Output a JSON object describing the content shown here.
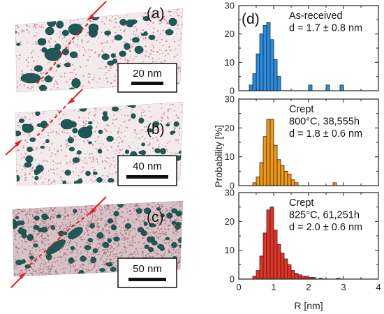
{
  "figure": {
    "panel_labels": [
      "(a)",
      "(b)",
      "(c)",
      "(d)"
    ],
    "scale_bars": [
      "20 nm",
      "40 nm",
      "50 nm"
    ],
    "ylabel": "Probability [%]",
    "xlabel": "R [nm]",
    "colors": {
      "precipitate": "#1d5a55",
      "matrix_dots": "#c0607a",
      "arrow": "#e02020",
      "border": "#222222"
    }
  },
  "chart_data": [
    {
      "type": "bar",
      "panel": "top",
      "title": "As-received",
      "annotation": "d = 1.7 ± 0.8 nm",
      "color": "#2a8ee6",
      "bin_width": 0.1,
      "x": [
        0.35,
        0.45,
        0.55,
        0.65,
        0.75,
        0.85,
        0.95,
        1.05,
        1.15,
        2.05,
        2.55,
        2.95
      ],
      "values": [
        2,
        6,
        13,
        20,
        23,
        24,
        18,
        11,
        5,
        2,
        2,
        2
      ],
      "xlim": [
        0,
        4
      ],
      "ylim": [
        0,
        30
      ],
      "xticks": [
        "0",
        "1",
        "2",
        "3",
        "4"
      ],
      "yticks": [
        "0",
        "10",
        "20",
        "30"
      ]
    },
    {
      "type": "bar",
      "panel": "middle",
      "title": "Crept",
      "subtitle": "800°C, 38,555h",
      "annotation": "d = 1.8 ± 0.6 nm",
      "color": "#f59b12",
      "bin_width": 0.1,
      "x": [
        0.45,
        0.55,
        0.65,
        0.75,
        0.85,
        0.95,
        1.05,
        1.15,
        1.25,
        1.35,
        1.45,
        1.55,
        1.65,
        2.75
      ],
      "values": [
        1,
        3,
        8,
        17,
        23,
        23,
        14,
        9,
        7,
        5,
        4,
        2,
        1,
        1
      ],
      "xlim": [
        0,
        4
      ],
      "ylim": [
        0,
        30
      ],
      "xticks": [
        "0",
        "1",
        "2",
        "3",
        "4"
      ],
      "yticks": [
        "0",
        "10",
        "20",
        "30"
      ]
    },
    {
      "type": "bar",
      "panel": "bottom",
      "title": "Crept",
      "subtitle": "825°C, 61,251h",
      "annotation": "d = 2.0 ± 0.6 nm",
      "color": "#e83224",
      "bin_width": 0.1,
      "x": [
        0.45,
        0.55,
        0.65,
        0.75,
        0.85,
        0.95,
        1.05,
        1.15,
        1.25,
        1.35,
        1.45,
        1.55,
        1.65,
        1.75,
        1.85,
        1.95,
        2.05,
        2.15,
        2.35,
        2.85
      ],
      "values": [
        1,
        3,
        8,
        16,
        24,
        25,
        17,
        12,
        9,
        7,
        5,
        3,
        2,
        1.5,
        1,
        1,
        0.6,
        0.6,
        0.3,
        0.3
      ],
      "xlim": [
        0,
        4
      ],
      "ylim": [
        0,
        30
      ],
      "xticks": [
        "0",
        "1",
        "2",
        "3",
        "4"
      ],
      "yticks": [
        "0",
        "10",
        "20",
        "30"
      ]
    }
  ]
}
